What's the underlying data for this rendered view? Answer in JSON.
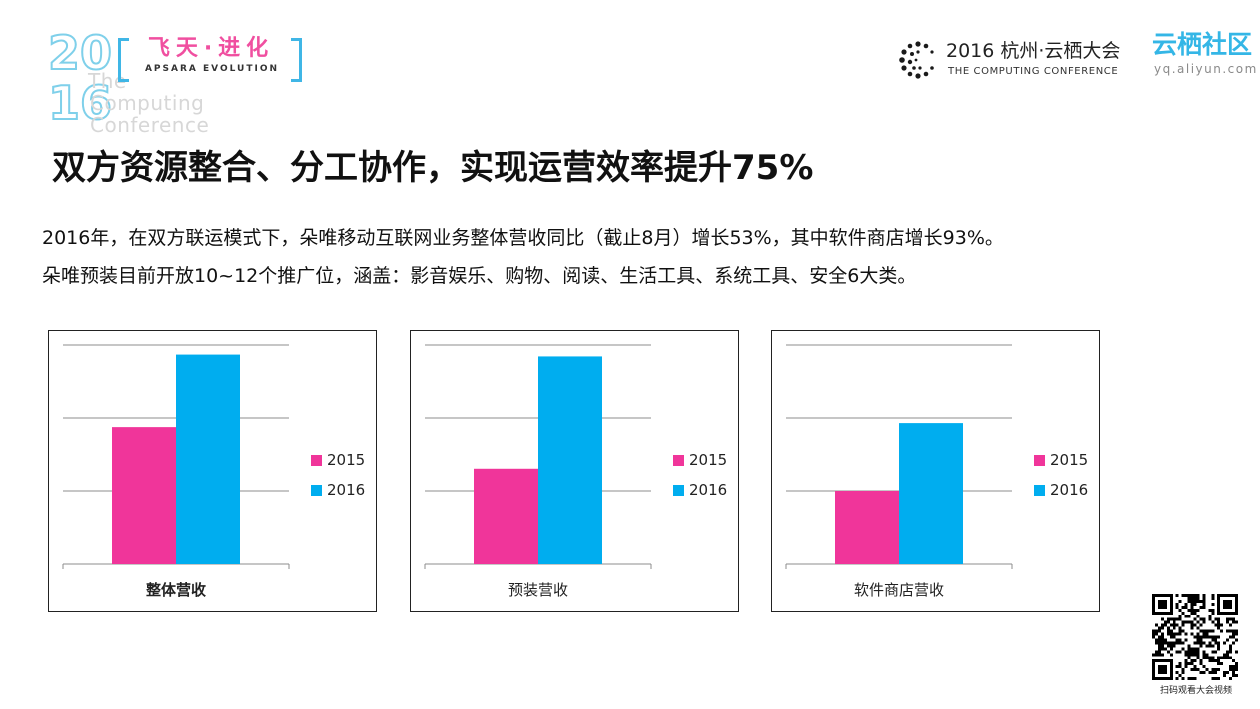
{
  "header": {
    "event_logo": {
      "year_digits": [
        "20",
        "16"
      ],
      "slogan_cn": "飞天·进化",
      "slogan_en": "APSARA EVOLUTION",
      "ghost_lines": [
        "The",
        "Computing",
        "Conference"
      ]
    },
    "conference": {
      "title": "2016 杭州·云栖大会",
      "subtitle": "THE COMPUTING CONFERENCE"
    },
    "community": {
      "title": "云栖社区",
      "url": "yq.aliyun.com"
    }
  },
  "headline": "双方资源整合、分工协作，实现运营效率提升75%",
  "body": [
    "2016年，在双方联运模式下，朵唯移动互联网业务整体营收同比（截止8月）增长53%，其中软件商店增长93%。",
    "朵唯预装目前开放10~12个推广位，涵盖：影音娱乐、购物、阅读、生活工具、系统工具、安全6大类。"
  ],
  "colors": {
    "series_2015": "#f0359a",
    "series_2016": "#00adef",
    "grid": "#8c8c8c",
    "accent_blue": "#34b6e6"
  },
  "chart_data": [
    {
      "type": "bar",
      "categories": [
        "整体营收"
      ],
      "series": [
        {
          "name": "2015",
          "values": [
            1.0
          ]
        },
        {
          "name": "2016",
          "values": [
            1.53
          ]
        }
      ],
      "title": "",
      "xlabel": "",
      "ylabel": "",
      "ylim": [
        0,
        1.6
      ],
      "grid": true,
      "legend": "right",
      "category_label_bold": true
    },
    {
      "type": "bar",
      "categories": [
        "预装营收"
      ],
      "series": [
        {
          "name": "2015",
          "values": [
            1.0
          ]
        },
        {
          "name": "2016",
          "values": [
            2.18
          ]
        }
      ],
      "title": "",
      "xlabel": "",
      "ylabel": "",
      "ylim": [
        0,
        2.3
      ],
      "grid": true,
      "legend": "right",
      "category_label_bold": false
    },
    {
      "type": "bar",
      "categories": [
        "软件商店营收"
      ],
      "series": [
        {
          "name": "2015",
          "values": [
            1.0
          ]
        },
        {
          "name": "2016",
          "values": [
            1.93
          ]
        }
      ],
      "title": "",
      "xlabel": "",
      "ylabel": "",
      "ylim": [
        0,
        3.0
      ],
      "grid": true,
      "legend": "right",
      "category_label_bold": false
    }
  ],
  "qr": {
    "caption": "扫码观看大会视频",
    "icon": "qr-code-icon"
  }
}
